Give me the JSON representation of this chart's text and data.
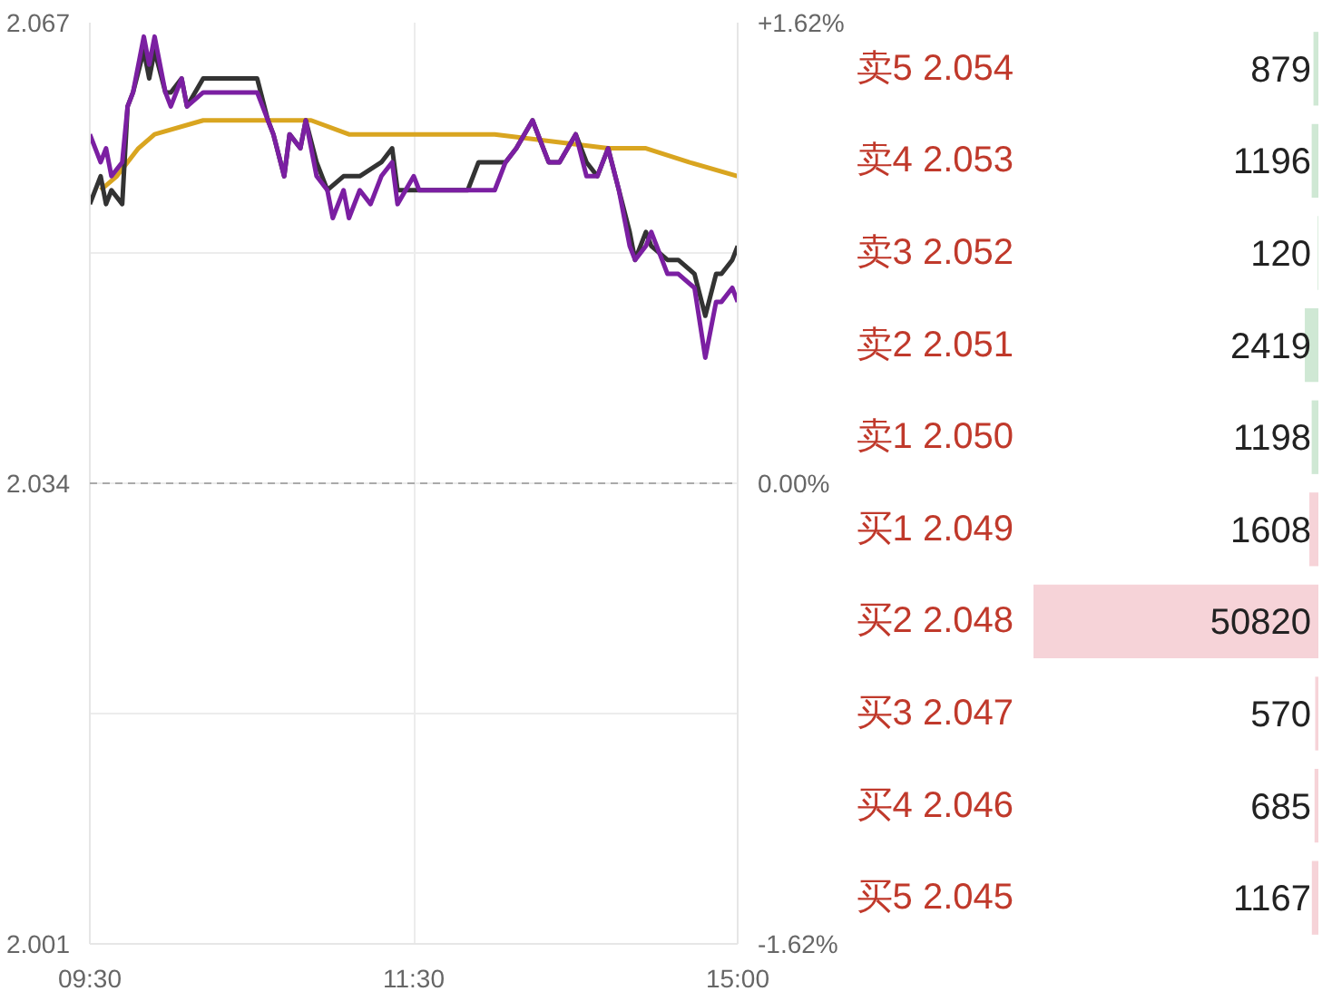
{
  "chart_data": [
    {
      "type": "line",
      "categories": [
        "09:30",
        null,
        null,
        null,
        null,
        null,
        null,
        null,
        null,
        null,
        null,
        null,
        null,
        null,
        null,
        null,
        null,
        null,
        null,
        null,
        null,
        null,
        null,
        null,
        null,
        null,
        null,
        null,
        null,
        null,
        null,
        null,
        null,
        null,
        null,
        null,
        null,
        null,
        null,
        null,
        null,
        null,
        null,
        null,
        null,
        null,
        null,
        null,
        null,
        null,
        null,
        null,
        null,
        null,
        null,
        null,
        null,
        null,
        null,
        null,
        "11:30",
        null,
        null,
        null,
        null,
        null,
        null,
        null,
        null,
        null,
        null,
        null,
        null,
        null,
        null,
        null,
        null,
        null,
        null,
        null,
        null,
        null,
        null,
        null,
        null,
        null,
        null,
        null,
        null,
        null,
        null,
        null,
        null,
        null,
        null,
        null,
        null,
        null,
        null,
        null,
        null,
        null,
        null,
        null,
        null,
        null,
        null,
        null,
        null,
        null,
        null,
        null,
        null,
        null,
        null,
        null,
        null,
        null,
        null,
        null,
        "15:00"
      ],
      "ylim": [
        2.001,
        2.067
      ],
      "yticks": [
        2.067,
        {
          "value": 2.0505,
          "label": null
        },
        2.034,
        {
          "value": 2.0175,
          "label": null
        },
        2.001
      ],
      "y2lim": [
        -1.62,
        1.62
      ],
      "y2ticks": [
        {
          "value": 1.62,
          "label": "+1.62%"
        },
        {
          "value": 0,
          "label": "0.00%"
        },
        {
          "value": -1.62,
          "label": "-1.62%"
        }
      ],
      "grid": true,
      "line_style": "solid",
      "ref_lines": [
        {
          "axis": "y",
          "value": 2.034,
          "color": "#aaaaaa",
          "line_style": "dashed"
        }
      ],
      "series": [
        {
          "color": "#d9a520",
          "values": [
            null,
            null,
            2.055,
            null,
            null,
            2.056,
            null,
            null,
            null,
            2.058,
            null,
            null,
            2.059,
            null,
            null,
            null,
            null,
            null,
            null,
            null,
            null,
            2.06,
            null,
            null,
            null,
            null,
            null,
            null,
            null,
            null,
            2.06,
            null,
            null,
            null,
            null,
            null,
            null,
            null,
            null,
            null,
            null,
            2.06,
            null,
            null,
            null,
            null,
            null,
            null,
            2.059,
            null,
            null,
            null,
            null,
            null,
            null,
            null,
            null,
            null,
            null,
            null,
            null,
            null,
            2.059,
            null,
            null,
            null,
            null,
            null,
            null,
            null,
            null,
            null,
            null,
            null,
            null,
            2.059,
            null,
            null,
            null,
            null,
            null,
            null,
            null,
            null,
            null,
            null,
            null,
            null,
            null,
            null,
            null,
            null,
            null,
            null,
            null,
            null,
            2.058,
            null,
            null,
            null,
            null,
            null,
            null,
            2.058,
            null,
            null,
            null,
            null,
            null,
            null,
            null,
            2.057,
            null,
            null,
            null,
            null,
            null,
            null,
            null,
            null,
            2.056
          ]
        },
        {
          "color": "#333333",
          "values": [
            2.054,
            null,
            2.056,
            2.054,
            2.055,
            null,
            2.054,
            2.061,
            2.062,
            null,
            2.065,
            2.063,
            2.065,
            null,
            2.062,
            2.062,
            null,
            2.063,
            2.061,
            null,
            null,
            2.063,
            null,
            2.063,
            null,
            null,
            null,
            null,
            null,
            null,
            null,
            2.063,
            null,
            2.06,
            2.059,
            null,
            2.056,
            2.059,
            null,
            2.058,
            2.06,
            null,
            2.057,
            null,
            2.055,
            null,
            null,
            2.056,
            null,
            null,
            2.056,
            null,
            null,
            null,
            2.057,
            null,
            2.058,
            2.055,
            null,
            null,
            null,
            2.055,
            null,
            null,
            null,
            null,
            null,
            null,
            null,
            null,
            2.055,
            null,
            2.057,
            null,
            null,
            2.057,
            null,
            2.057,
            null,
            2.058,
            null,
            null,
            2.06,
            null,
            2.058,
            2.057,
            null,
            2.057,
            null,
            null,
            2.059,
            null,
            2.057,
            null,
            2.056,
            null,
            2.058,
            null,
            2.055,
            null,
            2.052,
            2.05,
            null,
            2.052,
            2.051,
            null,
            null,
            2.05,
            null,
            2.05,
            null,
            null,
            2.049,
            null,
            2.046,
            null,
            2.049,
            2.049,
            null,
            2.05,
            2.051
          ]
        },
        {
          "color": "#7b1fa2",
          "values": [
            2.059,
            null,
            2.057,
            2.058,
            2.056,
            null,
            2.057,
            2.061,
            2.062,
            null,
            2.066,
            2.064,
            2.066,
            null,
            2.062,
            2.061,
            null,
            2.063,
            2.061,
            null,
            null,
            2.062,
            null,
            2.062,
            null,
            null,
            null,
            null,
            null,
            null,
            null,
            2.062,
            null,
            2.06,
            2.059,
            null,
            2.056,
            2.059,
            null,
            2.058,
            2.06,
            null,
            2.056,
            null,
            2.055,
            2.053,
            null,
            2.055,
            2.053,
            null,
            2.055,
            null,
            2.054,
            null,
            2.056,
            null,
            2.057,
            2.054,
            null,
            null,
            2.056,
            2.055,
            null,
            null,
            null,
            2.055,
            null,
            null,
            null,
            null,
            null,
            null,
            null,
            null,
            null,
            2.055,
            null,
            2.057,
            null,
            2.058,
            null,
            null,
            2.06,
            null,
            2.058,
            2.057,
            null,
            2.057,
            null,
            null,
            2.059,
            null,
            2.056,
            null,
            2.056,
            null,
            2.058,
            null,
            2.055,
            null,
            2.051,
            2.05,
            null,
            2.051,
            2.052,
            null,
            null,
            2.049,
            null,
            2.049,
            null,
            null,
            2.048,
            null,
            2.043,
            null,
            2.047,
            2.047,
            null,
            2.048,
            2.047
          ]
        }
      ]
    },
    {
      "type": "bar",
      "orientation": "horizontal",
      "tick_labels": "y",
      "data_labels": true,
      "categories": [
        "卖5 2.054",
        "卖4 2.053",
        "卖3 2.052",
        "卖2 2.051",
        "卖1 2.050",
        "买1 2.049",
        "买2 2.048",
        "买3 2.047",
        "买4 2.046",
        "买5 2.045"
      ],
      "values": [
        879,
        1196,
        120,
        2419,
        1198,
        1608,
        50820,
        570,
        685,
        1167
      ],
      "colors": [
        "#cfe8d4",
        "#cfe8d4",
        "#cfe8d4",
        "#cfe8d4",
        "#cfe8d4",
        "#f6d3d8",
        "#f6d3d8",
        "#f6d3d8",
        "#f6d3d8",
        "#f6d3d8"
      ]
    }
  ]
}
